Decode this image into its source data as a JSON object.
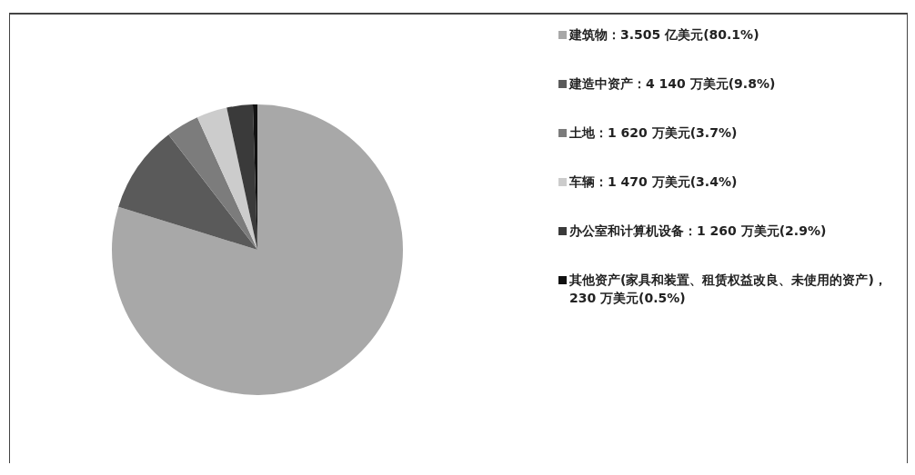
{
  "chart_data": {
    "type": "pie",
    "categories": [
      "建筑物：3.505 亿美元(80.1%)",
      "建造中资产：4 140 万美元(9.8%)",
      "土地：1 620 万美元(3.7%)",
      "车辆：1 470 万美元(3.4%)",
      "办公室和计算机设备：1 260 万美元(2.9%)",
      "其他资产(家具和装置、租赁权益改良、未使用的资产)，230 万美元(0.5%)"
    ],
    "values": [
      80.1,
      9.8,
      3.7,
      3.4,
      2.9,
      0.5
    ],
    "colors": [
      "#a8a8a8",
      "#5a5a5a",
      "#7c7c7c",
      "#cccccc",
      "#3a3a3a",
      "#111111"
    ],
    "legend": "right"
  }
}
